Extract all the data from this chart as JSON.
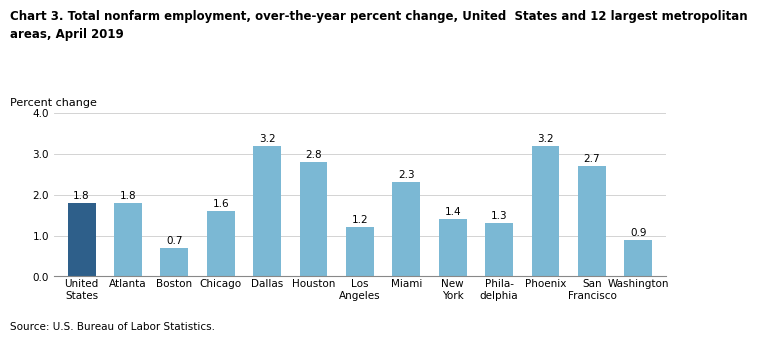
{
  "title_line1": "Chart 3. Total nonfarm employment, over-the-year percent change, United  States and 12 largest metropolitan",
  "title_line2": "areas, April 2019",
  "ylabel": "Percent change",
  "source": "Source: U.S. Bureau of Labor Statistics.",
  "categories": [
    "United\nStates",
    "Atlanta",
    "Boston",
    "Chicago",
    "Dallas",
    "Houston",
    "Los\nAngeles",
    "Miami",
    "New\nYork",
    "Phila-\ndelphia",
    "Phoenix",
    "San\nFrancisco",
    "Washington"
  ],
  "values": [
    1.8,
    1.8,
    0.7,
    1.6,
    3.2,
    2.8,
    1.2,
    2.3,
    1.4,
    1.3,
    3.2,
    2.7,
    0.9
  ],
  "bar_colors": [
    "#2E5F8A",
    "#7BB8D4",
    "#7BB8D4",
    "#7BB8D4",
    "#7BB8D4",
    "#7BB8D4",
    "#7BB8D4",
    "#7BB8D4",
    "#7BB8D4",
    "#7BB8D4",
    "#7BB8D4",
    "#7BB8D4",
    "#7BB8D4"
  ],
  "ylim": [
    0,
    4.0
  ],
  "yticks": [
    0.0,
    1.0,
    2.0,
    3.0,
    4.0
  ],
  "ytick_labels": [
    "0.0",
    "1.0",
    "2.0",
    "3.0",
    "4.0"
  ],
  "title_fontsize": 8.5,
  "ylabel_fontsize": 8,
  "tick_fontsize": 7.5,
  "bar_label_fontsize": 7.5,
  "source_fontsize": 7.5
}
